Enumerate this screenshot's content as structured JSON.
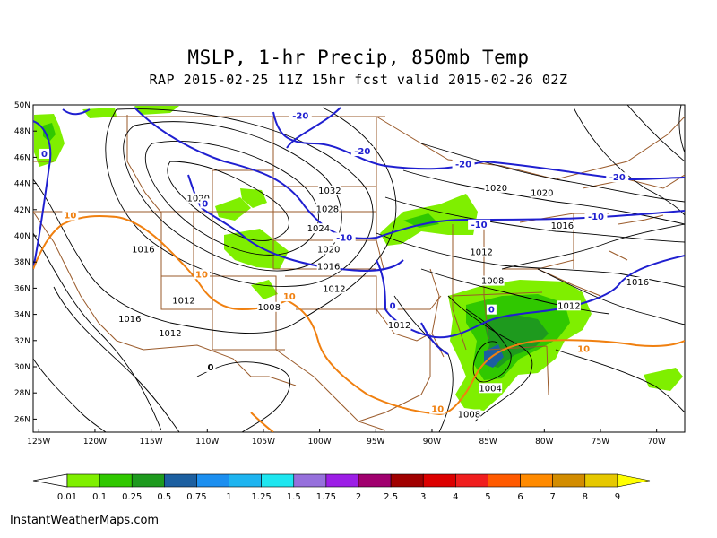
{
  "title": "MSLP, 1-hr Precip, 850mb Temp",
  "subtitle": "RAP 2015-02-25 11Z 15hr fcst valid 2015-02-26 02Z",
  "footer": "InstantWeatherMaps.com",
  "map": {
    "lat_labels": [
      "50N",
      "48N",
      "46N",
      "44N",
      "42N",
      "40N",
      "38N",
      "36N",
      "34N",
      "32N",
      "30N",
      "28N",
      "26N"
    ],
    "lon_labels": [
      "125W",
      "120W",
      "115W",
      "110W",
      "105W",
      "100W",
      "95W",
      "90W",
      "85W",
      "80W",
      "75W",
      "70W"
    ],
    "isobar_labels": [
      {
        "text": "1020",
        "lon": -110.8,
        "lat": 42.7
      },
      {
        "text": "1032",
        "lon": -99.1,
        "lat": 43.3
      },
      {
        "text": "1028",
        "lon": -99.3,
        "lat": 41.9
      },
      {
        "text": "1024",
        "lon": -100.1,
        "lat": 40.4
      },
      {
        "text": "1020",
        "lon": -99.2,
        "lat": 38.8
      },
      {
        "text": "1016",
        "lon": -99.2,
        "lat": 37.5
      },
      {
        "text": "1012",
        "lon": -98.7,
        "lat": 35.8
      },
      {
        "text": "1008",
        "lon": -104.5,
        "lat": 34.4
      },
      {
        "text": "1012",
        "lon": -112.1,
        "lat": 34.9
      },
      {
        "text": "1016",
        "lon": -115.7,
        "lat": 38.8
      },
      {
        "text": "1016",
        "lon": -116.9,
        "lat": 33.5
      },
      {
        "text": "1012",
        "lon": -113.3,
        "lat": 32.4
      },
      {
        "text": "1020",
        "lon": -84.3,
        "lat": 43.5
      },
      {
        "text": "1020",
        "lon": -80.2,
        "lat": 43.1
      },
      {
        "text": "1016",
        "lon": -78.4,
        "lat": 40.6
      },
      {
        "text": "1012",
        "lon": -85.6,
        "lat": 38.6
      },
      {
        "text": "1008",
        "lon": -84.6,
        "lat": 36.4
      },
      {
        "text": "1012",
        "lon": -92.9,
        "lat": 33.0
      },
      {
        "text": "1012",
        "lon": -77.8,
        "lat": 34.5
      },
      {
        "text": "1016",
        "lon": -71.7,
        "lat": 36.3
      },
      {
        "text": "1004",
        "lon": -84.8,
        "lat": 28.2
      },
      {
        "text": "1008",
        "lon": -86.7,
        "lat": 26.2
      }
    ],
    "temp_labels": [
      {
        "text": "-20",
        "lon": -101.7,
        "lat": 49.0,
        "color": "blue"
      },
      {
        "text": "-20",
        "lon": -96.2,
        "lat": 46.3,
        "color": "blue"
      },
      {
        "text": "-20",
        "lon": -87.2,
        "lat": 45.3,
        "color": "blue"
      },
      {
        "text": "-20",
        "lon": -73.5,
        "lat": 44.3,
        "color": "blue"
      },
      {
        "text": "0",
        "lon": -124.5,
        "lat": 46.1,
        "color": "blue"
      },
      {
        "text": "0",
        "lon": -110.2,
        "lat": 42.3,
        "color": "blue"
      },
      {
        "text": "-10",
        "lon": -97.8,
        "lat": 39.7,
        "color": "blue"
      },
      {
        "text": "-10",
        "lon": -85.8,
        "lat": 40.7,
        "color": "blue"
      },
      {
        "text": "-10",
        "lon": -75.4,
        "lat": 41.3,
        "color": "blue"
      },
      {
        "text": "0",
        "lon": -93.5,
        "lat": 34.5,
        "color": "blue"
      },
      {
        "text": "0",
        "lon": -84.7,
        "lat": 34.2,
        "color": "blue"
      },
      {
        "text": "10",
        "lon": -122.2,
        "lat": 41.4,
        "color": "orange"
      },
      {
        "text": "10",
        "lon": -110.5,
        "lat": 36.9,
        "color": "orange"
      },
      {
        "text": "10",
        "lon": -102.7,
        "lat": 35.2,
        "color": "orange"
      },
      {
        "text": "10",
        "lon": -76.5,
        "lat": 31.2,
        "color": "orange"
      },
      {
        "text": "10",
        "lon": -89.5,
        "lat": 26.6,
        "color": "orange"
      },
      {
        "text": "0",
        "lon": -109.7,
        "lat": 29.8,
        "color": "black"
      }
    ],
    "colors": {
      "isobar": "#000000",
      "temp_cold": "#1f1fd0",
      "temp_warm": "#f08010",
      "borders": "#9a5a2a"
    }
  },
  "colorbar": {
    "labels": [
      "0.01",
      "0.1",
      "0.25",
      "0.5",
      "0.75",
      "1",
      "1.25",
      "1.5",
      "1.75",
      "2",
      "2.5",
      "3",
      "4",
      "5",
      "6",
      "7",
      "8",
      "9"
    ],
    "colors": [
      "#7fef00",
      "#30c800",
      "#1e9a1e",
      "#1c5fa0",
      "#1c8ff0",
      "#1eb4f0",
      "#1ee6f0",
      "#9670dc",
      "#9c1ee6",
      "#a0006e",
      "#a00000",
      "#dc0000",
      "#f01e1e",
      "#ff5a00",
      "#ff8a00",
      "#d28c00",
      "#e6c800",
      "#ffff00"
    ]
  }
}
